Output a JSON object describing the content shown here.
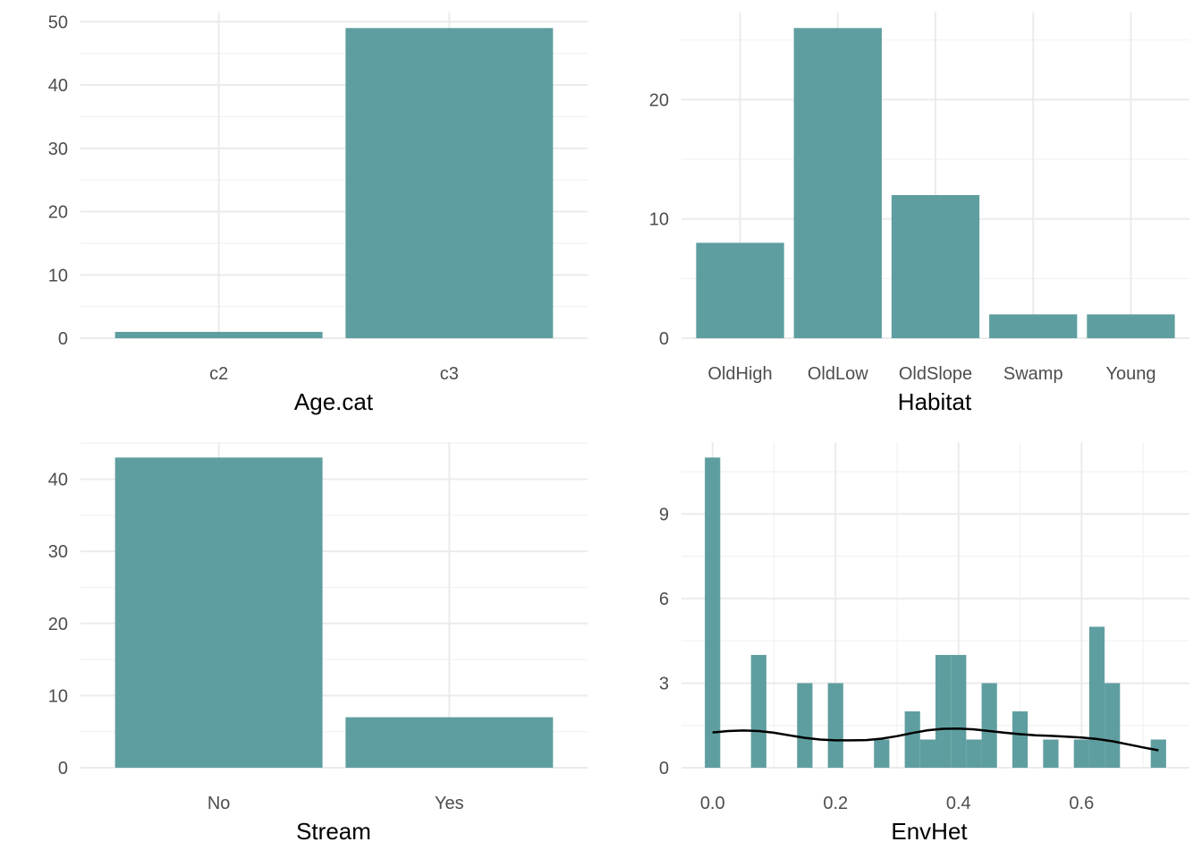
{
  "colors": {
    "bar": "#5f9ea0",
    "density_line": "#000000",
    "grid": "#ebebeb"
  },
  "chart_data": [
    {
      "type": "bar",
      "xlabel": "Age.cat",
      "ylabel": "",
      "categories": [
        "c2",
        "c3"
      ],
      "values": [
        1,
        49
      ],
      "ylim": [
        0,
        51.45
      ],
      "yticks": [
        0,
        10,
        20,
        30,
        40,
        50
      ],
      "grid": true
    },
    {
      "type": "bar",
      "xlabel": "Habitat",
      "ylabel": "",
      "categories": [
        "OldHigh",
        "OldLow",
        "OldSlope",
        "Swamp",
        "Young"
      ],
      "values": [
        8,
        26,
        12,
        2,
        2
      ],
      "ylim": [
        0,
        27.3
      ],
      "yticks": [
        0,
        10,
        20
      ],
      "grid": true
    },
    {
      "type": "bar",
      "xlabel": "Stream",
      "ylabel": "",
      "categories": [
        "No",
        "Yes"
      ],
      "values": [
        43,
        7
      ],
      "ylim": [
        0,
        45.15
      ],
      "yticks": [
        0,
        10,
        20,
        30,
        40
      ],
      "grid": true
    },
    {
      "type": "histogram",
      "xlabel": "EnvHet",
      "ylabel": "",
      "bin_width": 0.025,
      "bins": [
        {
          "x": 0.0,
          "count": 11
        },
        {
          "x": 0.075,
          "count": 4
        },
        {
          "x": 0.15,
          "count": 3
        },
        {
          "x": 0.2,
          "count": 3
        },
        {
          "x": 0.275,
          "count": 1
        },
        {
          "x": 0.325,
          "count": 2
        },
        {
          "x": 0.35,
          "count": 1
        },
        {
          "x": 0.375,
          "count": 4
        },
        {
          "x": 0.4,
          "count": 4
        },
        {
          "x": 0.425,
          "count": 1
        },
        {
          "x": 0.45,
          "count": 3
        },
        {
          "x": 0.5,
          "count": 2
        },
        {
          "x": 0.55,
          "count": 1
        },
        {
          "x": 0.6,
          "count": 1
        },
        {
          "x": 0.625,
          "count": 5
        },
        {
          "x": 0.65,
          "count": 3
        },
        {
          "x": 0.725,
          "count": 1
        }
      ],
      "density_curve": {
        "x": [
          0.0,
          0.025,
          0.05,
          0.075,
          0.1,
          0.125,
          0.15,
          0.175,
          0.2,
          0.225,
          0.25,
          0.275,
          0.3,
          0.325,
          0.35,
          0.375,
          0.4,
          0.425,
          0.45,
          0.475,
          0.5,
          0.525,
          0.55,
          0.575,
          0.6,
          0.625,
          0.65,
          0.675,
          0.7,
          0.725
        ],
        "y": [
          1.25,
          1.3,
          1.32,
          1.3,
          1.24,
          1.15,
          1.06,
          1.0,
          0.97,
          0.97,
          0.98,
          1.03,
          1.12,
          1.23,
          1.33,
          1.38,
          1.39,
          1.36,
          1.3,
          1.24,
          1.19,
          1.15,
          1.13,
          1.1,
          1.07,
          1.02,
          0.94,
          0.83,
          0.72,
          0.62
        ]
      },
      "xlim": [
        -0.0505,
        0.7755
      ],
      "ylim": [
        0,
        11.55
      ],
      "xticks": [
        0.0,
        0.2,
        0.4,
        0.6
      ],
      "xtick_labels": [
        "0.0",
        "0.2",
        "0.4",
        "0.6"
      ],
      "yticks": [
        0,
        3,
        6,
        9
      ],
      "grid": true
    }
  ]
}
